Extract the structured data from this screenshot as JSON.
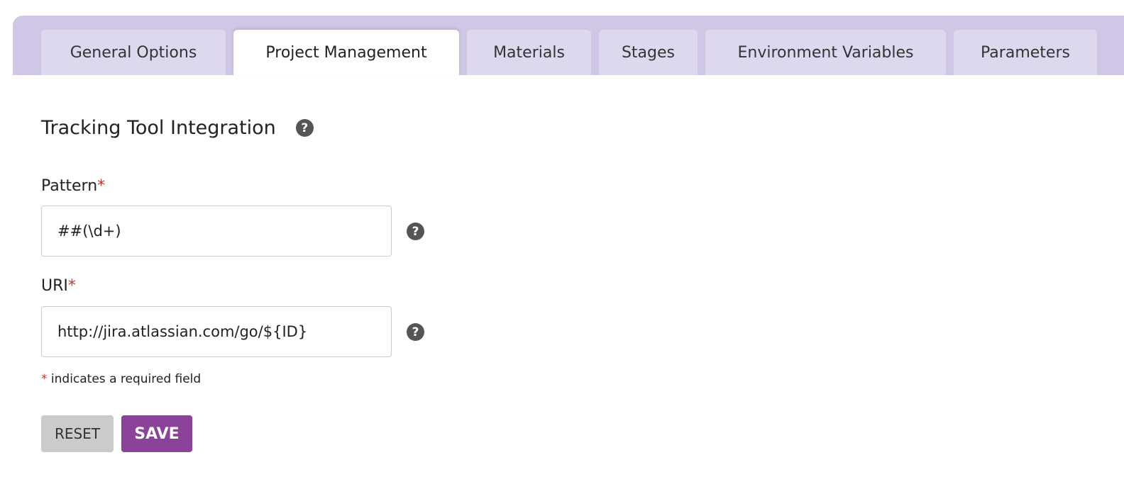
{
  "tabs": [
    {
      "label": "General Options"
    },
    {
      "label": "Project Management"
    },
    {
      "label": "Materials"
    },
    {
      "label": "Stages"
    },
    {
      "label": "Environment Variables"
    },
    {
      "label": "Parameters"
    }
  ],
  "active_tab": "Project Management",
  "section": {
    "title": "Tracking Tool Integration",
    "help_icon": "?"
  },
  "fields": {
    "pattern": {
      "label": "Pattern",
      "required": "*",
      "value": "##(\\d+)"
    },
    "uri": {
      "label": "URI",
      "required": "*",
      "value": "http://jira.atlassian.com/go/${ID}"
    }
  },
  "note": {
    "star": "*",
    "text": " indicates a required field"
  },
  "buttons": {
    "reset": "RESET",
    "save": "SAVE"
  },
  "colors": {
    "accent": "#8a4399",
    "tabbar": "#d0c6e6",
    "tab": "#ded8ee"
  }
}
